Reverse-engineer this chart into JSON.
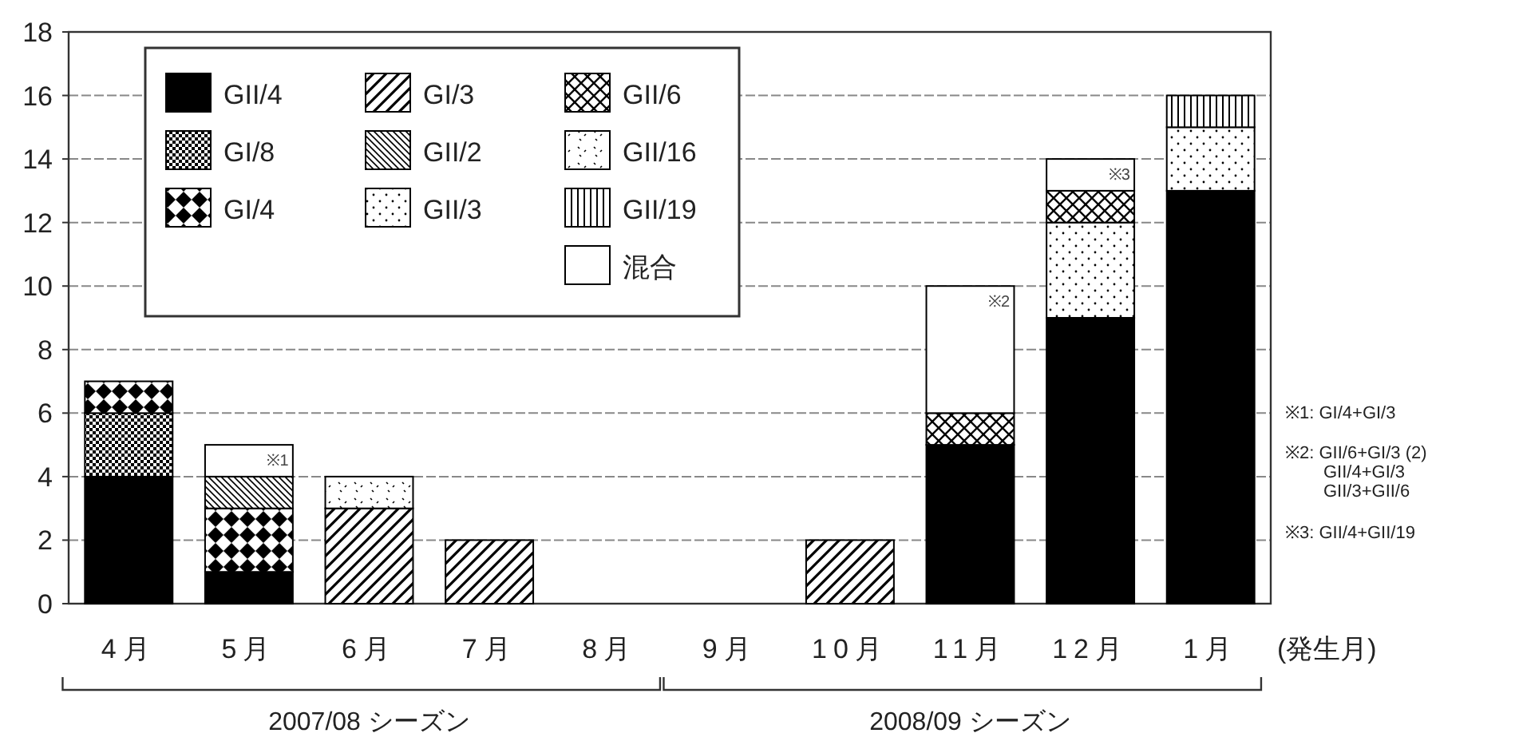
{
  "chart_data": {
    "type": "bar",
    "stacked": true,
    "xlabel": "(発生月)",
    "categories": [
      "4月",
      "5月",
      "6月",
      "7月",
      "8月",
      "9月",
      "10月",
      "11月",
      "12月",
      "1月"
    ],
    "ylim": [
      0,
      18
    ],
    "yticks": [
      0,
      2,
      4,
      6,
      8,
      10,
      12,
      14,
      16,
      18
    ],
    "grid": "y",
    "legend": "top left",
    "series": [
      {
        "name": "GII/4",
        "color": "#000000",
        "values": [
          4,
          1,
          0,
          0,
          0,
          0,
          0,
          5,
          9,
          13
        ]
      },
      {
        "name": "GI/8",
        "color": "#000000",
        "values": [
          2,
          0,
          0,
          0,
          0,
          0,
          0,
          0,
          0,
          0
        ]
      },
      {
        "name": "GI/4",
        "color": "#000000",
        "values": [
          1,
          2,
          0,
          0,
          0,
          0,
          0,
          0,
          0,
          0
        ]
      },
      {
        "name": "GI/3",
        "color": "#000000",
        "values": [
          0,
          0,
          3,
          2,
          0,
          0,
          2,
          0,
          0,
          0
        ]
      },
      {
        "name": "GII/2",
        "color": "#000000",
        "values": [
          0,
          1,
          0,
          0,
          0,
          0,
          0,
          0,
          0,
          0
        ]
      },
      {
        "name": "GII/3",
        "color": "#000000",
        "values": [
          0,
          0,
          0,
          0,
          0,
          0,
          0,
          0,
          3,
          2
        ]
      },
      {
        "name": "GII/6",
        "color": "#000000",
        "values": [
          0,
          0,
          0,
          0,
          0,
          0,
          0,
          1,
          1,
          0
        ]
      },
      {
        "name": "GII/16",
        "color": "#000000",
        "values": [
          0,
          0,
          1,
          0,
          0,
          0,
          0,
          0,
          0,
          0
        ]
      },
      {
        "name": "GII/19",
        "color": "#000000",
        "values": [
          0,
          0,
          0,
          0,
          0,
          0,
          0,
          0,
          0,
          1
        ]
      },
      {
        "name": "混合",
        "color": "#ffffff",
        "values": [
          0,
          1,
          0,
          0,
          0,
          0,
          0,
          4,
          1,
          0
        ]
      }
    ],
    "annotations": [
      {
        "text": "※1",
        "x": "5月",
        "y": 5
      },
      {
        "text": "※2",
        "x": "11月",
        "y": 10
      },
      {
        "text": "※3",
        "x": "12月",
        "y": 14
      },
      "※1: GI/4+GI/3",
      "※2: GII/6+GI/3 (2)",
      "GII/4+GI/3",
      "GII/3+GII/6",
      "※3: GII/4+GII/19",
      "2007/08 シーズン",
      "2008/09 シーズン"
    ]
  }
}
